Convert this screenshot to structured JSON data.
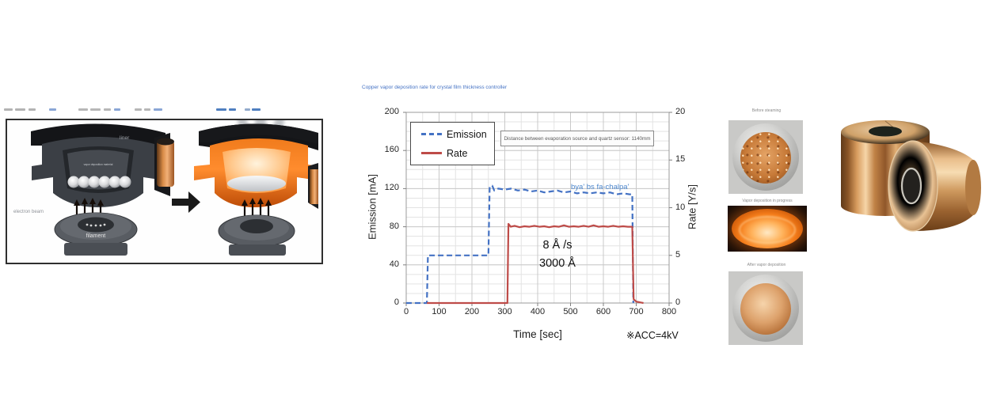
{
  "page": {
    "background": "#ffffff"
  },
  "fine_print": {
    "segments": [
      {
        "x": 5,
        "w": 11,
        "c": "#b3b3b3"
      },
      {
        "x": 19,
        "w": 13,
        "c": "#b3b3b3"
      },
      {
        "x": 36,
        "w": 9,
        "c": "#b3b3b3"
      },
      {
        "x": 62,
        "w": 9,
        "c": "#8aa6d6"
      },
      {
        "x": 99,
        "w": 12,
        "c": "#b7b7b7"
      },
      {
        "x": 114,
        "w": 13,
        "c": "#b7b7b7"
      },
      {
        "x": 131,
        "w": 9,
        "c": "#b7b7b7"
      },
      {
        "x": 144,
        "w": 8,
        "c": "#8aa6d6"
      },
      {
        "x": 170,
        "w": 9,
        "c": "#b7b7b7"
      },
      {
        "x": 182,
        "w": 8,
        "c": "#b7b7b7"
      },
      {
        "x": 194,
        "w": 11,
        "c": "#8aa6d6"
      },
      {
        "x": 273,
        "w": 13,
        "c": "#4f7fc0"
      },
      {
        "x": 289,
        "w": 9,
        "c": "#4f7fc0"
      },
      {
        "x": 309,
        "w": 7,
        "c": "#93abcc"
      },
      {
        "x": 318,
        "w": 11,
        "c": "#4f7fc0"
      }
    ]
  },
  "diagram": {
    "labels": {
      "liner": "liner",
      "electron_beam": "electron beam",
      "filament": "filament",
      "material": "vapor deposition material"
    }
  },
  "chart_data": {
    "type": "line",
    "title": "Copper vapor deposition rate for crystal film thickness controller",
    "xlabel": "Time [sec]",
    "ylabel_left": "Emission [mA]",
    "ylabel_right": "Rate [Y/s]",
    "xlim": [
      0,
      800
    ],
    "ylim_left": [
      0,
      200
    ],
    "ylim_right": [
      0,
      20
    ],
    "xticks": [
      0,
      100,
      200,
      300,
      400,
      500,
      600,
      700,
      800
    ],
    "yticks_left": [
      0,
      40,
      80,
      120,
      160,
      200
    ],
    "yticks_right": [
      0,
      5,
      10,
      15,
      20
    ],
    "minor_x_step": 50,
    "minor_y_step": 10,
    "grid": true,
    "legend_position": "top-left-inside",
    "series": [
      {
        "name": "Emission",
        "axis": "left",
        "color": "#4472C4",
        "style": "dashed",
        "points": [
          [
            0,
            0
          ],
          [
            63,
            0
          ],
          [
            66,
            50
          ],
          [
            250,
            50
          ],
          [
            254,
            122
          ],
          [
            262,
            123
          ],
          [
            268,
            118
          ],
          [
            280,
            120
          ],
          [
            300,
            119
          ],
          [
            320,
            120
          ],
          [
            340,
            118
          ],
          [
            360,
            119
          ],
          [
            380,
            117
          ],
          [
            400,
            118
          ],
          [
            420,
            116
          ],
          [
            440,
            117
          ],
          [
            460,
            118
          ],
          [
            480,
            116
          ],
          [
            500,
            117
          ],
          [
            520,
            115
          ],
          [
            540,
            116
          ],
          [
            560,
            115
          ],
          [
            580,
            116
          ],
          [
            600,
            115
          ],
          [
            620,
            116
          ],
          [
            640,
            114
          ],
          [
            660,
            115
          ],
          [
            680,
            114
          ],
          [
            688,
            114
          ],
          [
            691,
            0
          ]
        ]
      },
      {
        "name": "Rate",
        "axis": "right",
        "color": "#BE4B48",
        "style": "solid",
        "points": [
          [
            63,
            0
          ],
          [
            308,
            0
          ],
          [
            311,
            8.3
          ],
          [
            318,
            8.0
          ],
          [
            330,
            8.1
          ],
          [
            345,
            7.95
          ],
          [
            360,
            8.05
          ],
          [
            375,
            8.0
          ],
          [
            390,
            8.1
          ],
          [
            405,
            8.0
          ],
          [
            420,
            8.05
          ],
          [
            435,
            7.95
          ],
          [
            450,
            8.05
          ],
          [
            465,
            8.0
          ],
          [
            480,
            8.15
          ],
          [
            495,
            8.0
          ],
          [
            510,
            8.05
          ],
          [
            525,
            8.0
          ],
          [
            540,
            8.1
          ],
          [
            555,
            8.0
          ],
          [
            570,
            8.15
          ],
          [
            585,
            8.0
          ],
          [
            600,
            8.05
          ],
          [
            615,
            8.0
          ],
          [
            630,
            8.1
          ],
          [
            645,
            8.0
          ],
          [
            660,
            8.05
          ],
          [
            675,
            8.0
          ],
          [
            688,
            8.0
          ],
          [
            692,
            0.4
          ],
          [
            700,
            0.15
          ],
          [
            715,
            0.05
          ],
          [
            722,
            0
          ]
        ]
      }
    ],
    "annotations": {
      "distance_note": "Distance between evaporation source and quartz sensor: 1140mm",
      "rate_label": "bya' bs fa-chalpa'",
      "setpoint_line1": "8 Å /s",
      "setpoint_line2": "3000 Å",
      "footnote": "※ACC=4kV"
    }
  },
  "photos": [
    {
      "caption": "Before steaming"
    },
    {
      "caption": "Vapor deposition in progress"
    },
    {
      "caption": "After vapor deposition"
    }
  ]
}
